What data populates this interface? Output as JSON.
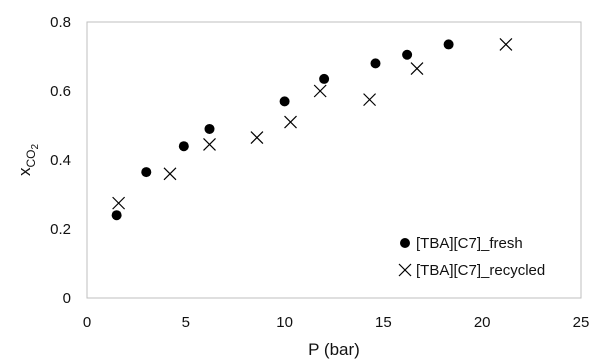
{
  "chart_data": {
    "type": "scatter",
    "title": "",
    "xlabel": "P (bar)",
    "ylabel": {
      "main": "x",
      "sub": "CO",
      "subsub": "2"
    },
    "xlim": [
      0,
      25
    ],
    "ylim": [
      0,
      0.8
    ],
    "xticks": [
      "0",
      "5",
      "10",
      "15",
      "20",
      "25"
    ],
    "yticks": [
      "0",
      "0.2",
      "0.4",
      "0.6",
      "0.8"
    ],
    "grid": false,
    "legend_position": "bottom-right",
    "series": [
      {
        "name": "[TBA][C7]_fresh",
        "marker": "circle",
        "color": "#000000",
        "x": [
          1.5,
          3.0,
          4.9,
          6.2,
          10.0,
          12.0,
          14.6,
          16.2,
          18.3
        ],
        "y": [
          0.24,
          0.365,
          0.44,
          0.49,
          0.57,
          0.635,
          0.68,
          0.705,
          0.735
        ]
      },
      {
        "name": "[TBA][C7]_recycled",
        "marker": "x",
        "color": "#000000",
        "x": [
          1.6,
          4.2,
          6.2,
          8.6,
          10.3,
          11.8,
          14.3,
          16.7,
          21.2
        ],
        "y": [
          0.275,
          0.36,
          0.445,
          0.465,
          0.51,
          0.6,
          0.575,
          0.665,
          0.735
        ]
      }
    ]
  }
}
